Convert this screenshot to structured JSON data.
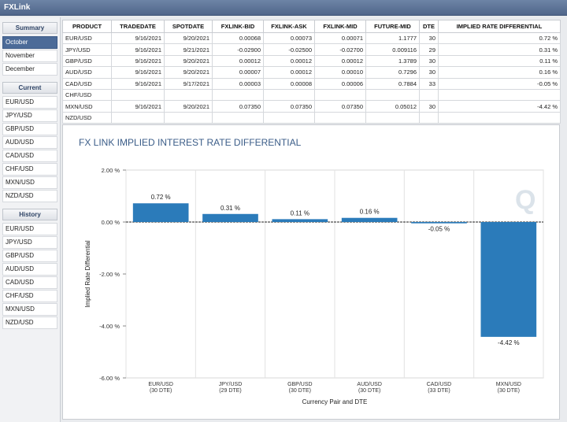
{
  "app": {
    "title": "FXLink"
  },
  "sidebar": {
    "summary": {
      "header": "Summary",
      "items": [
        {
          "label": "October",
          "active": true
        },
        {
          "label": "November"
        },
        {
          "label": "December"
        }
      ]
    },
    "current": {
      "header": "Current",
      "items": [
        {
          "label": "EUR/USD"
        },
        {
          "label": "JPY/USD"
        },
        {
          "label": "GBP/USD"
        },
        {
          "label": "AUD/USD"
        },
        {
          "label": "CAD/USD"
        },
        {
          "label": "CHF/USD"
        },
        {
          "label": "MXN/USD"
        },
        {
          "label": "NZD/USD"
        }
      ]
    },
    "history": {
      "header": "History",
      "items": [
        {
          "label": "EUR/USD"
        },
        {
          "label": "JPY/USD"
        },
        {
          "label": "GBP/USD"
        },
        {
          "label": "AUD/USD"
        },
        {
          "label": "CAD/USD"
        },
        {
          "label": "CHF/USD"
        },
        {
          "label": "MXN/USD"
        },
        {
          "label": "NZD/USD"
        }
      ]
    }
  },
  "table": {
    "headers": [
      "PRODUCT",
      "TRADEDATE",
      "SPOTDATE",
      "FXLINK-BID",
      "FXLINK-ASK",
      "FXLINK-MID",
      "FUTURE-MID",
      "DTE",
      "IMPLIED RATE DIFFERENTIAL"
    ],
    "rows": [
      [
        "EUR/USD",
        "9/16/2021",
        "9/20/2021",
        "0.00068",
        "0.00073",
        "0.00071",
        "1.1777",
        "30",
        "0.72 %"
      ],
      [
        "JPY/USD",
        "9/16/2021",
        "9/21/2021",
        "-0.02900",
        "-0.02500",
        "-0.02700",
        "0.009116",
        "29",
        "0.31 %"
      ],
      [
        "GBP/USD",
        "9/16/2021",
        "9/20/2021",
        "0.00012",
        "0.00012",
        "0.00012",
        "1.3789",
        "30",
        "0.11 %"
      ],
      [
        "AUD/USD",
        "9/16/2021",
        "9/20/2021",
        "0.00007",
        "0.00012",
        "0.00010",
        "0.7296",
        "30",
        "0.16 %"
      ],
      [
        "CAD/USD",
        "9/16/2021",
        "9/17/2021",
        "0.00003",
        "0.00008",
        "0.00006",
        "0.7884",
        "33",
        "-0.05 %"
      ],
      [
        "CHF/USD",
        "",
        "",
        "",
        "",
        "",
        "",
        "",
        ""
      ],
      [
        "MXN/USD",
        "9/16/2021",
        "9/20/2021",
        "0.07350",
        "0.07350",
        "0.07350",
        "0.05012",
        "30",
        "-4.42 %"
      ],
      [
        "NZD/USD",
        "",
        "",
        "",
        "",
        "",
        "",
        "",
        ""
      ]
    ]
  },
  "chart_data": {
    "type": "bar",
    "title": "FX LINK IMPLIED INTEREST RATE DIFFERENTIAL",
    "xlabel": "Currency Pair and DTE",
    "ylabel": "Implied Rate Differential",
    "categories": [
      [
        "EUR/USD",
        "(30 DTE)"
      ],
      [
        "JPY/USD",
        "(29 DTE)"
      ],
      [
        "GBP/USD",
        "(30 DTE)"
      ],
      [
        "AUD/USD",
        "(30 DTE)"
      ],
      [
        "CAD/USD",
        "(33 DTE)"
      ],
      [
        "MXN/USD",
        "(30 DTE)"
      ]
    ],
    "values": [
      0.72,
      0.31,
      0.11,
      0.16,
      -0.05,
      -4.42
    ],
    "value_labels": [
      "0.72 %",
      "0.31 %",
      "0.11 %",
      "0.16 %",
      "-0.05 %",
      "-4.42 %"
    ],
    "ylim": [
      -6,
      2
    ],
    "yticks": [
      2,
      0,
      -2,
      -4,
      -6
    ],
    "ytick_labels": [
      "2.00 %",
      "0.00 %",
      "-2.00 %",
      "-4.00 %",
      "-6.00 %"
    ],
    "bar_color": "#2b7bba",
    "grid": true
  }
}
